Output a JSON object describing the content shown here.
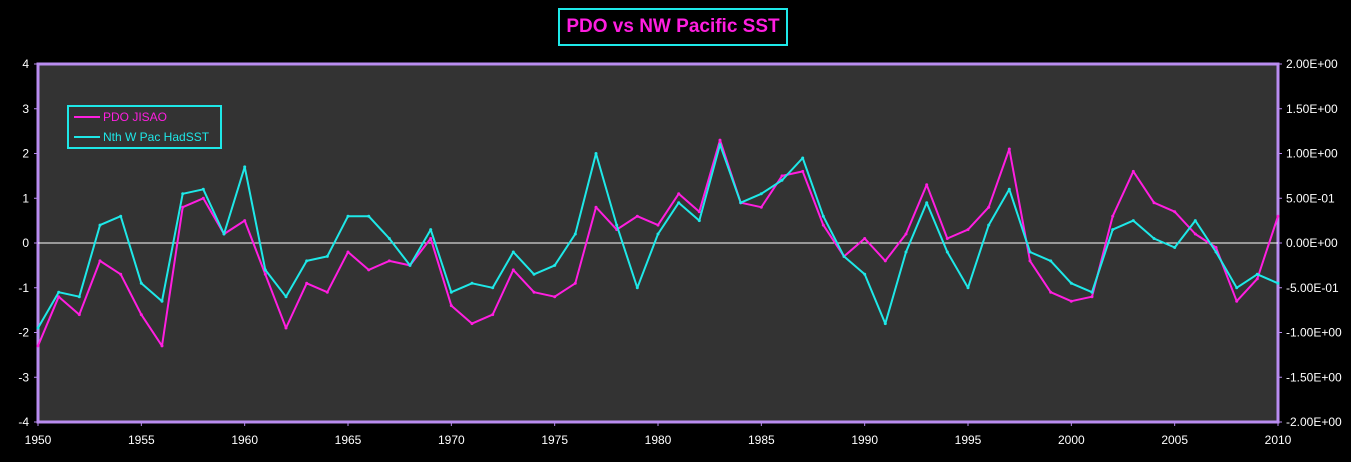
{
  "title": "PDO vs NW Pacific SST",
  "chart_data": {
    "type": "line",
    "title": "PDO vs NW Pacific SST",
    "xlabel": "",
    "ylabel": "",
    "grid": false,
    "legend_position": "top-left",
    "colors": {
      "background": "#000000",
      "plot_area": "#333333",
      "frame": "#b98cf0",
      "zero_line": "#ffffff",
      "pdo": "#ff1ee0",
      "sst": "#1ee8e8"
    },
    "x_range": [
      1950,
      2010
    ],
    "x_ticks": [
      "1950",
      "1955",
      "1960",
      "1965",
      "1970",
      "1975",
      "1980",
      "1985",
      "1990",
      "1995",
      "2000",
      "2005",
      "2010"
    ],
    "y_left": {
      "range": [
        -4,
        4
      ],
      "ticks": [
        "4",
        "3",
        "2",
        "1",
        "0",
        "-1",
        "-2",
        "-3",
        "-4"
      ]
    },
    "y_right": {
      "range": [
        -2,
        2
      ],
      "ticks": [
        "2.00E+00",
        "1.50E+00",
        "1.00E+00",
        "5.00E-01",
        "0.00E+00",
        "-5.00E-01",
        "-1.00E+00",
        "-1.50E+00",
        "-2.00E+00"
      ]
    },
    "x": [
      1950,
      1951,
      1952,
      1953,
      1954,
      1955,
      1956,
      1957,
      1958,
      1959,
      1960,
      1961,
      1962,
      1963,
      1964,
      1965,
      1966,
      1967,
      1968,
      1969,
      1970,
      1971,
      1972,
      1973,
      1974,
      1975,
      1976,
      1977,
      1978,
      1979,
      1980,
      1981,
      1982,
      1983,
      1984,
      1985,
      1986,
      1987,
      1988,
      1989,
      1990,
      1991,
      1992,
      1993,
      1994,
      1995,
      1996,
      1997,
      1998,
      1999,
      2000,
      2001,
      2002,
      2003,
      2004,
      2005,
      2006,
      2007,
      2008,
      2009,
      2010
    ],
    "series": [
      {
        "name": "PDO JISAO",
        "axis": "left",
        "values": [
          -2.3,
          -1.2,
          -1.6,
          -0.4,
          -0.7,
          -1.6,
          -2.3,
          0.8,
          1.0,
          0.2,
          0.5,
          -0.7,
          -1.9,
          -0.9,
          -1.1,
          -0.2,
          -0.6,
          -0.4,
          -0.5,
          0.1,
          -1.4,
          -1.8,
          -1.6,
          -0.6,
          -1.1,
          -1.2,
          -0.9,
          0.8,
          0.3,
          0.6,
          0.4,
          1.1,
          0.7,
          2.3,
          0.9,
          0.8,
          1.5,
          1.6,
          0.4,
          -0.3,
          0.1,
          -0.4,
          0.2,
          1.3,
          0.1,
          0.3,
          0.8,
          2.1,
          -0.4,
          -1.1,
          -1.3,
          -1.2,
          0.6,
          1.6,
          0.9,
          0.7,
          0.2,
          -0.1,
          -1.3,
          -0.8,
          0.6
        ]
      },
      {
        "name": "Nth W Pac HadSST",
        "axis": "right",
        "values": [
          -0.95,
          -0.55,
          -0.6,
          0.2,
          0.3,
          -0.45,
          -0.65,
          0.55,
          0.6,
          0.1,
          0.85,
          -0.3,
          -0.6,
          -0.2,
          -0.15,
          0.3,
          0.3,
          0.05,
          -0.25,
          0.15,
          -0.55,
          -0.45,
          -0.5,
          -0.1,
          -0.35,
          -0.25,
          0.1,
          1.0,
          0.2,
          -0.5,
          0.1,
          0.45,
          0.25,
          1.1,
          0.45,
          0.55,
          0.7,
          0.95,
          0.3,
          -0.15,
          -0.35,
          -0.9,
          -0.1,
          0.45,
          -0.1,
          -0.5,
          0.2,
          0.6,
          -0.1,
          -0.2,
          -0.45,
          -0.55,
          0.15,
          0.25,
          0.05,
          -0.05,
          0.25,
          -0.1,
          -0.5,
          -0.35,
          -0.45
        ]
      }
    ]
  }
}
